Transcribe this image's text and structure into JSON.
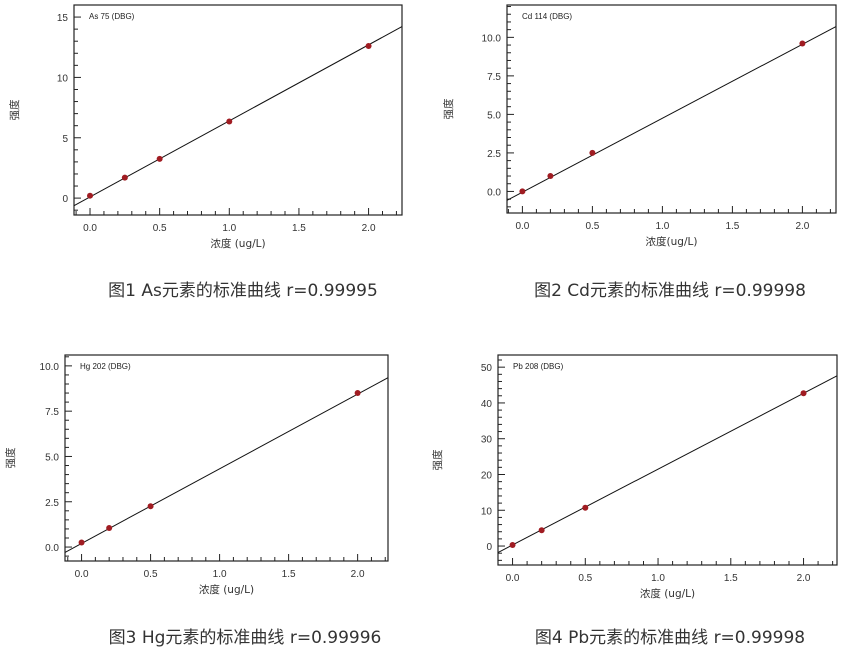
{
  "chart_data": [
    {
      "type": "scatter",
      "series_label": "As 75 (DBG)",
      "caption": "图1 As元素的标准曲线 r=0.99995",
      "xlabel": "浓度 (ug/L)",
      "ylabel": "强度",
      "xlim": [
        -0.115,
        2.24
      ],
      "ylim": [
        -1.4,
        16
      ],
      "xticks": [
        "0.0",
        "0.5",
        "1.0",
        "1.5",
        "2.0"
      ],
      "yticks": [
        "0",
        "5",
        "10",
        "15"
      ],
      "ytick_values": [
        0,
        5,
        10,
        15
      ],
      "y_minor_step": 1,
      "points": {
        "x": [
          0,
          0.25,
          0.5,
          1.0,
          2.0
        ],
        "y": [
          0.2,
          1.7,
          3.25,
          6.35,
          12.6
        ]
      },
      "fit": {
        "slope": 6.3,
        "intercept": 0.1
      },
      "marker_color": "#a01c22"
    },
    {
      "type": "scatter",
      "series_label": "Cd 114 (DBG)",
      "caption": "图2 Cd元素的标准曲线 r=0.99998",
      "xlabel": "浓度(ug/L)",
      "ylabel": "强度",
      "xlim": [
        -0.11,
        2.24
      ],
      "ylim": [
        -1.4,
        12.1
      ],
      "xticks": [
        "0.0",
        "0.5",
        "1.0",
        "1.5",
        "2.0"
      ],
      "yticks": [
        "0.0",
        "2.5",
        "5.0",
        "7.5",
        "10.0"
      ],
      "ytick_values": [
        0,
        2.5,
        5,
        7.5,
        10
      ],
      "y_minor_step": 0.5,
      "points": {
        "x": [
          0,
          0.2,
          0.5,
          2.0
        ],
        "y": [
          0.0,
          1.0,
          2.5,
          9.6
        ]
      },
      "fit": {
        "slope": 4.8,
        "intercept": -0.05
      },
      "marker_color": "#a01c22"
    },
    {
      "type": "scatter",
      "series_label": "Hg 202 (DBG)",
      "caption": "图3 Hg元素的标准曲线 r=0.99996",
      "xlabel": "浓度 (ug/L)",
      "ylabel": "强度",
      "xlim": [
        -0.12,
        2.22
      ],
      "ylim": [
        -0.77,
        10.6
      ],
      "xticks": [
        "0.0",
        "0.5",
        "1.0",
        "1.5",
        "2.0"
      ],
      "yticks": [
        "0.0",
        "2.5",
        "5.0",
        "7.5",
        "10.0"
      ],
      "ytick_values": [
        0,
        2.5,
        5,
        7.5,
        10
      ],
      "y_minor_step": 0.5,
      "points": {
        "x": [
          0,
          0.2,
          0.5,
          2.0
        ],
        "y": [
          0.25,
          1.05,
          2.25,
          8.5
        ]
      },
      "fit": {
        "slope": 4.12,
        "intercept": 0.2
      },
      "marker_color": "#a01c22"
    },
    {
      "type": "scatter",
      "series_label": "Pb 208 (DBG)",
      "caption": "图4 Pb元素的标准曲线 r=0.99998",
      "xlabel": "浓度 (ug/L)",
      "ylabel": "强度",
      "xlim": [
        -0.1,
        2.23
      ],
      "ylim": [
        -5.3,
        53.4
      ],
      "xticks": [
        "0.0",
        "0.5",
        "1.0",
        "1.5",
        "2.0"
      ],
      "yticks": [
        "0",
        "10",
        "20",
        "30",
        "40",
        "50"
      ],
      "ytick_values": [
        0,
        10,
        20,
        30,
        40,
        50
      ],
      "y_minor_step": 2,
      "points": {
        "x": [
          0,
          0.2,
          0.5,
          2.0
        ],
        "y": [
          0.3,
          4.4,
          10.7,
          42.7
        ]
      },
      "fit": {
        "slope": 21.2,
        "intercept": 0.3
      },
      "marker_color": "#a01c22"
    }
  ]
}
